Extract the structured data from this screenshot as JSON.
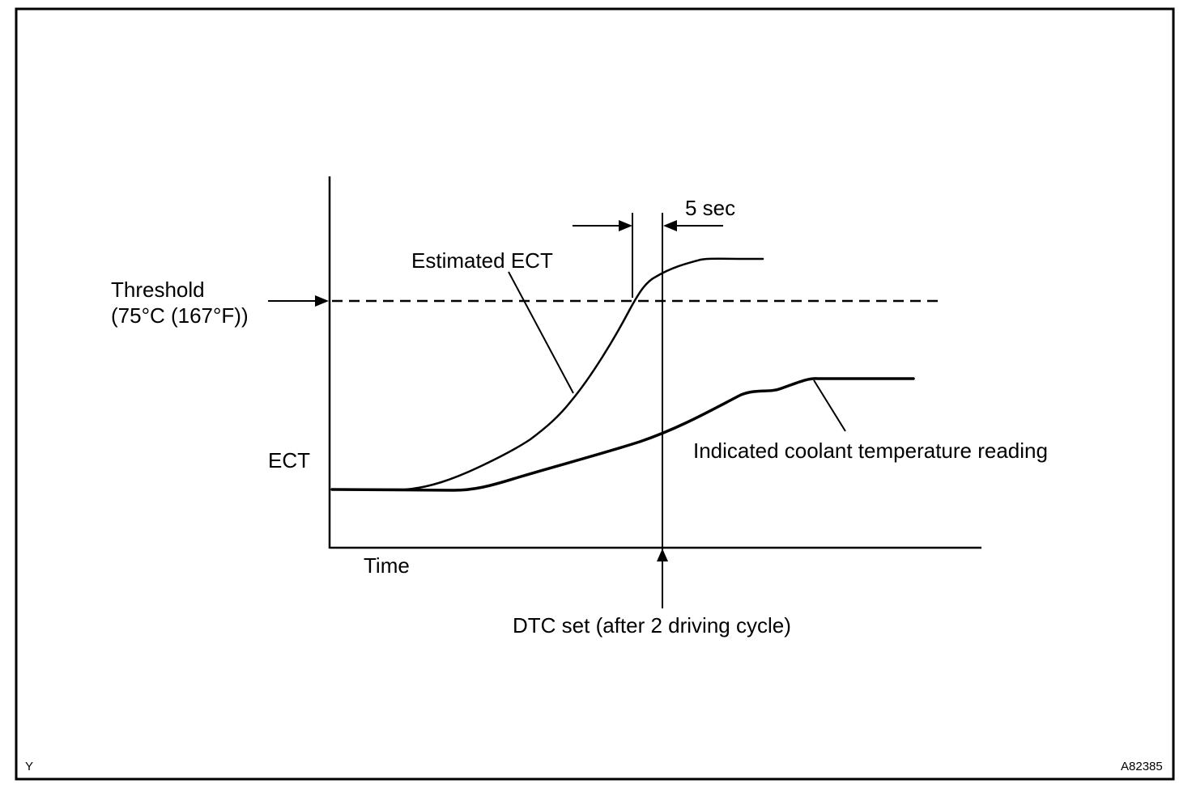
{
  "labels": {
    "threshold_line1": "Threshold",
    "threshold_line2": "(75°C (167°F))",
    "estimated_ect": "Estimated ECT",
    "five_sec": "5 sec",
    "ect_axis": "ECT",
    "time_axis": "Time",
    "indicated_reading": "Indicated coolant temperature reading",
    "dtc_set": "DTC set (after 2 driving cycle)",
    "corner_left": "Y",
    "figure_id": "A82385"
  },
  "colors": {
    "line": "#000000",
    "background": "#ffffff"
  }
}
